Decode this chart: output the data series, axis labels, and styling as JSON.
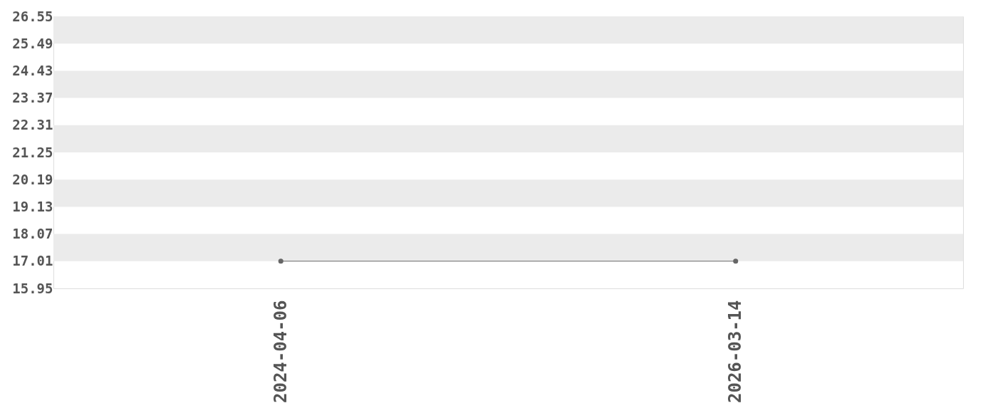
{
  "chart_data": {
    "type": "line",
    "categories": [
      "2024-04-06",
      "2026-03-14"
    ],
    "series": [
      {
        "color": "#666666",
        "values": [
          17.01,
          17.01
        ]
      }
    ],
    "ylim": [
      15.95,
      26.55
    ],
    "yticks": [
      15.95,
      17.01,
      18.07,
      19.13,
      20.19,
      21.25,
      22.31,
      23.37,
      24.43,
      25.49,
      26.55
    ],
    "bands": [
      {
        "axis": "y",
        "from": 17.01,
        "to": 18.07,
        "color": "#ebebeb"
      },
      {
        "axis": "y",
        "from": 19.13,
        "to": 20.19,
        "color": "#ebebeb"
      },
      {
        "axis": "y",
        "from": 21.25,
        "to": 22.31,
        "color": "#ebebeb"
      },
      {
        "axis": "y",
        "from": 23.37,
        "to": 24.43,
        "color": "#ebebeb"
      },
      {
        "axis": "y",
        "from": 25.49,
        "to": 26.55,
        "color": "#ebebeb"
      }
    ],
    "marker": "circle",
    "line_style": "solid"
  }
}
